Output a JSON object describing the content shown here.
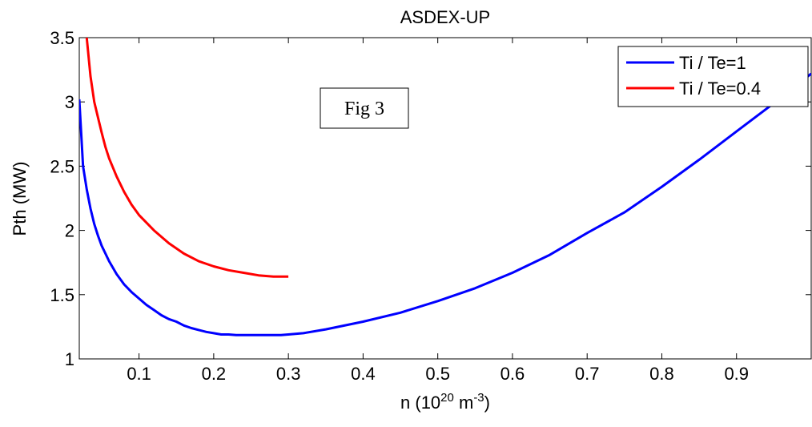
{
  "chart_data": {
    "type": "line",
    "title": "ASDEX-UP",
    "xlabel": {
      "base": "n (10",
      "sup1": "20",
      "mid": " m",
      "sup2": "-3",
      "end": ")"
    },
    "ylabel": "Pth (MW)",
    "xlim": [
      0.02,
      1.0
    ],
    "ylim": [
      1.0,
      3.5
    ],
    "xticks": [
      0.1,
      0.2,
      0.3,
      0.4,
      0.5,
      0.6,
      0.7,
      0.8,
      0.9
    ],
    "xtick_labels": [
      "0.1",
      "0.2",
      "0.3",
      "0.4",
      "0.5",
      "0.6",
      "0.7",
      "0.8",
      "0.9"
    ],
    "yticks": [
      1,
      1.5,
      2,
      2.5,
      3,
      3.5
    ],
    "ytick_labels": [
      "1",
      "1.5",
      "2",
      "2.5",
      "3",
      "3.5"
    ],
    "grid": false,
    "legend_position": "top-right",
    "annotation": "Fig 3",
    "series": [
      {
        "name": "Ti / Te=1",
        "color": "#0000ff",
        "x": [
          0.02,
          0.025,
          0.03,
          0.035,
          0.04,
          0.045,
          0.05,
          0.06,
          0.07,
          0.08,
          0.09,
          0.1,
          0.11,
          0.12,
          0.13,
          0.14,
          0.15,
          0.16,
          0.17,
          0.18,
          0.19,
          0.2,
          0.21,
          0.22,
          0.23,
          0.24,
          0.25,
          0.26,
          0.27,
          0.28,
          0.29,
          0.3,
          0.32,
          0.35,
          0.4,
          0.45,
          0.5,
          0.55,
          0.6,
          0.65,
          0.7,
          0.75,
          0.8,
          0.85,
          0.9,
          0.95,
          1.0
        ],
        "y": [
          3.02,
          2.5,
          2.32,
          2.17,
          2.05,
          1.96,
          1.88,
          1.76,
          1.66,
          1.58,
          1.52,
          1.47,
          1.42,
          1.38,
          1.34,
          1.31,
          1.29,
          1.26,
          1.24,
          1.225,
          1.21,
          1.2,
          1.19,
          1.19,
          1.185,
          1.185,
          1.185,
          1.185,
          1.185,
          1.185,
          1.185,
          1.19,
          1.2,
          1.23,
          1.29,
          1.36,
          1.45,
          1.55,
          1.67,
          1.81,
          1.98,
          2.14,
          2.34,
          2.55,
          2.77,
          2.99,
          3.22
        ]
      },
      {
        "name": "Ti / Te=0.4",
        "color": "#ff0000",
        "x": [
          0.03,
          0.035,
          0.04,
          0.045,
          0.05,
          0.055,
          0.06,
          0.07,
          0.08,
          0.09,
          0.1,
          0.12,
          0.14,
          0.16,
          0.18,
          0.2,
          0.22,
          0.24,
          0.26,
          0.28,
          0.3
        ],
        "y": [
          3.5,
          3.2,
          3.0,
          2.88,
          2.76,
          2.65,
          2.56,
          2.42,
          2.3,
          2.2,
          2.12,
          2.0,
          1.9,
          1.82,
          1.76,
          1.72,
          1.69,
          1.67,
          1.65,
          1.64,
          1.64
        ]
      }
    ]
  }
}
